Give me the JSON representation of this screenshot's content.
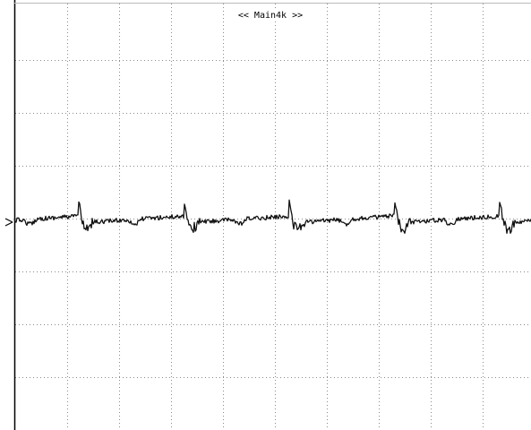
{
  "header": {
    "title": "<< Main4k >>"
  }
}
